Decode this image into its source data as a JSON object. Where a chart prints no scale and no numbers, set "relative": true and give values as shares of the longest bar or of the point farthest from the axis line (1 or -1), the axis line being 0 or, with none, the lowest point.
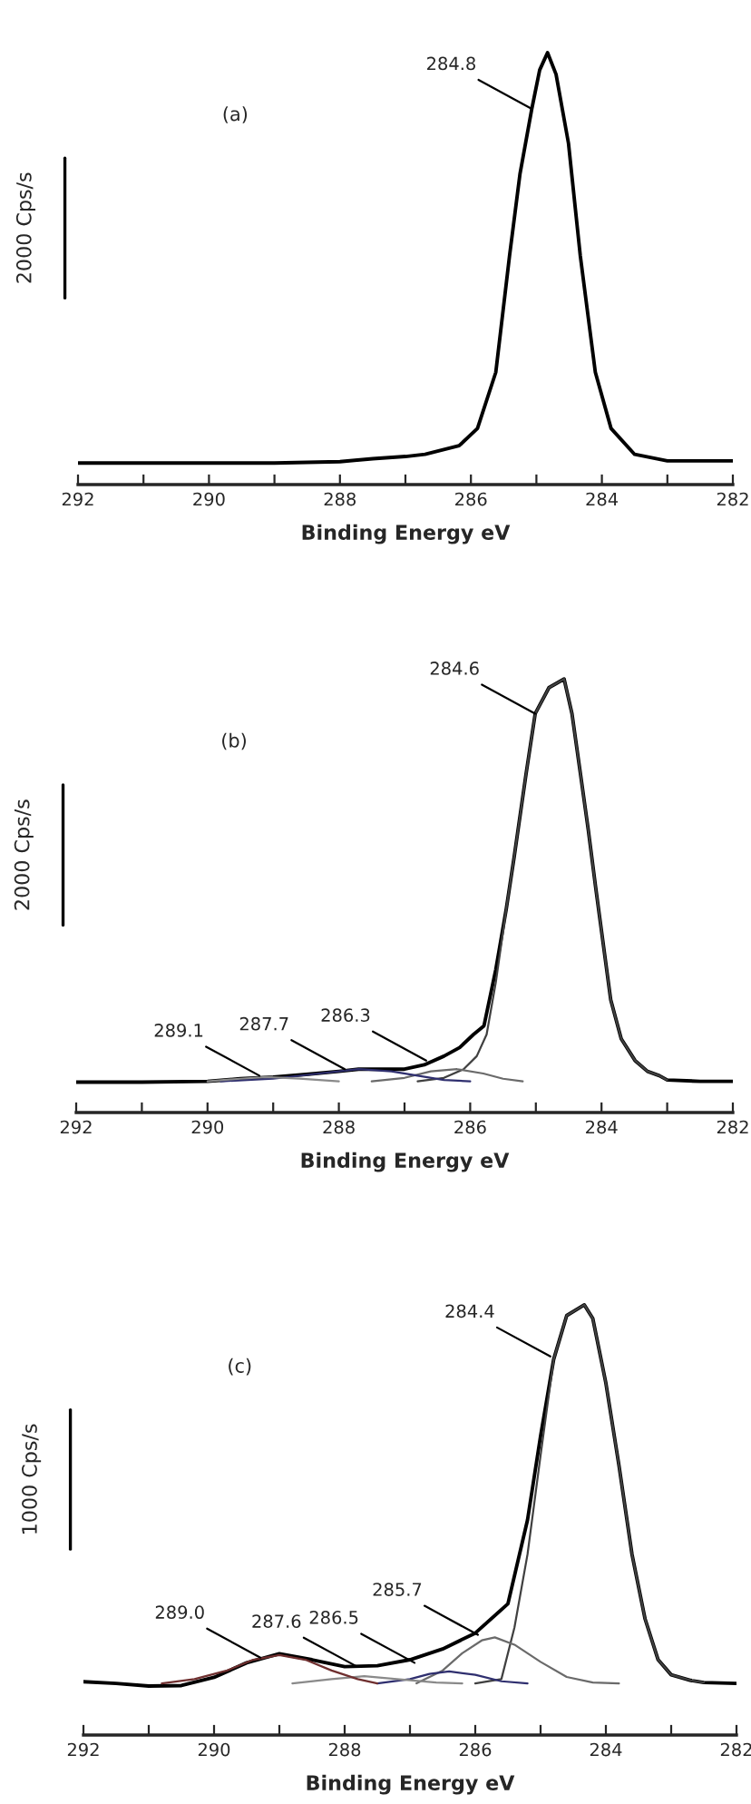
{
  "chart_data": [
    {
      "type": "line",
      "relative": true,
      "xlabel": "Binding Energy eV",
      "ylabel": "2000 Cps/s",
      "xlim": [
        292,
        282
      ],
      "xticks": [
        292,
        {
          "value": 291,
          "label": null
        },
        290,
        {
          "value": 289,
          "label": null
        },
        288,
        {
          "value": 287,
          "label": null
        },
        286,
        {
          "value": 285,
          "label": null
        },
        284,
        {
          "value": 283,
          "label": null
        },
        282
      ],
      "annotations": [
        "(a)",
        {
          "text": "284.8",
          "x": 285.07,
          "y": 0.87
        }
      ],
      "series": [
        {
          "color": "#000000",
          "x": [
            292,
            291,
            290,
            289,
            288,
            287.5,
            287,
            286.7,
            286.18,
            285.9,
            285.62,
            285.41,
            285.25,
            285.07,
            284.95,
            284.83,
            284.7,
            284.51,
            284.33,
            284.1,
            283.86,
            283.5,
            283,
            282
          ],
          "values": [
            0.05,
            0.05,
            0.05,
            0.05,
            0.053,
            0.06,
            0.065,
            0.07,
            0.09,
            0.13,
            0.26,
            0.53,
            0.72,
            0.87,
            0.96,
            1.0,
            0.95,
            0.79,
            0.53,
            0.26,
            0.13,
            0.07,
            0.055,
            0.055
          ]
        }
      ]
    },
    {
      "type": "line",
      "relative": true,
      "xlabel": "Binding Energy eV",
      "ylabel": "2000 Cps/s",
      "xlim": [
        292,
        282
      ],
      "xticks": [
        292,
        {
          "value": 291,
          "label": null
        },
        290,
        {
          "value": 289,
          "label": null
        },
        288,
        {
          "value": 287,
          "label": null
        },
        286,
        {
          "value": 285,
          "label": null
        },
        284,
        {
          "value": 283,
          "label": null
        },
        282
      ],
      "annotations": [
        "(b)",
        {
          "text": "284.6",
          "x": 285.01,
          "y": 0.92
        },
        {
          "text": "286.3",
          "x": 286.67,
          "y": 0.12
        },
        {
          "text": "287.7",
          "x": 287.91,
          "y": 0.1
        },
        {
          "text": "289.1",
          "x": 289.21,
          "y": 0.085
        }
      ],
      "series": [
        {
          "color": "#000000",
          "x": [
            292,
            291,
            290,
            289.5,
            289,
            288.5,
            288,
            287.7,
            287.4,
            287,
            286.7,
            286.4,
            286.16,
            285.95,
            285.79,
            285.61,
            285.45,
            285.33,
            285.15,
            285.01,
            284.8,
            284.57,
            284.45,
            284.32,
            284.2,
            284.09,
            283.86,
            283.7,
            283.49,
            283.3,
            283.12,
            283,
            282.5,
            282
          ],
          "values": [
            0.07,
            0.07,
            0.072,
            0.078,
            0.082,
            0.088,
            0.095,
            0.1,
            0.1,
            0.1,
            0.11,
            0.13,
            0.15,
            0.18,
            0.2,
            0.33,
            0.47,
            0.59,
            0.78,
            0.92,
            0.98,
            1.0,
            0.92,
            0.78,
            0.65,
            0.52,
            0.26,
            0.17,
            0.12,
            0.095,
            0.085,
            0.075,
            0.072,
            0.072
          ]
        },
        {
          "color": "#404040",
          "x": [
            286.8,
            286.4,
            286.1,
            285.9,
            285.75,
            285.61,
            285.45,
            285.33,
            285.15,
            285.01,
            284.8,
            284.57,
            284.45,
            284.32,
            284.2,
            284.09,
            283.86,
            283.7,
            283.49,
            283.3,
            283.12,
            283
          ],
          "values": [
            0.072,
            0.08,
            0.1,
            0.13,
            0.18,
            0.3,
            0.47,
            0.59,
            0.78,
            0.92,
            0.98,
            1.0,
            0.92,
            0.78,
            0.65,
            0.52,
            0.26,
            0.17,
            0.12,
            0.095,
            0.085,
            0.075
          ]
        },
        {
          "color": "#6a6a6a",
          "x": [
            287.5,
            287,
            286.6,
            286.2,
            285.8,
            285.5,
            285.2
          ],
          "values": [
            0.072,
            0.08,
            0.095,
            0.1,
            0.09,
            0.078,
            0.072
          ]
        },
        {
          "color": "#2f2f6f",
          "x": [
            289.8,
            289,
            288.3,
            287.7,
            287.2,
            286.8,
            286.4,
            286
          ],
          "values": [
            0.072,
            0.078,
            0.09,
            0.1,
            0.095,
            0.085,
            0.075,
            0.072
          ]
        },
        {
          "color": "#8a8a8a",
          "x": [
            290,
            289.5,
            289.1,
            288.6,
            288
          ],
          "values": [
            0.072,
            0.078,
            0.082,
            0.078,
            0.072
          ]
        }
      ]
    },
    {
      "type": "line",
      "relative": true,
      "xlabel": "Binding Energy eV",
      "ylabel": "1000 Cps/s",
      "xlim": [
        292,
        282
      ],
      "xticks": [
        292,
        {
          "value": 291,
          "label": null
        },
        290,
        {
          "value": 289,
          "label": null
        },
        288,
        {
          "value": 287,
          "label": null
        },
        286,
        {
          "value": 285,
          "label": null
        },
        284,
        {
          "value": 283,
          "label": null
        },
        282
      ],
      "annotations": [
        "(c)",
        {
          "text": "284.4",
          "x": 284.85,
          "y": 0.88
        },
        {
          "text": "285.7",
          "x": 285.96,
          "y": 0.233
        },
        {
          "text": "286.5",
          "x": 286.93,
          "y": 0.168
        },
        {
          "text": "287.6",
          "x": 287.81,
          "y": 0.159
        },
        {
          "text": "289.0",
          "x": 289.29,
          "y": 0.18
        }
      ],
      "series": [
        {
          "color": "#000000",
          "x": [
            292,
            291.5,
            291,
            290.5,
            290,
            289.5,
            289,
            288.5,
            288,
            287.5,
            287,
            286.5,
            286,
            285.5,
            285.2,
            285,
            284.8,
            284.6,
            284.33,
            284.2,
            284,
            283.8,
            283.6,
            283.4,
            283.2,
            283,
            282.7,
            282.5,
            282
          ],
          "values": [
            0.124,
            0.12,
            0.114,
            0.115,
            0.134,
            0.168,
            0.189,
            0.175,
            0.159,
            0.161,
            0.175,
            0.2,
            0.237,
            0.305,
            0.5,
            0.695,
            0.873,
            0.975,
            1.0,
            0.968,
            0.818,
            0.627,
            0.42,
            0.27,
            0.175,
            0.14,
            0.127,
            0.122,
            0.12
          ]
        },
        {
          "color": "#404040",
          "x": [
            286,
            285.6,
            285.4,
            285.2,
            285,
            284.8,
            284.6,
            284.33,
            284.2,
            284,
            283.8,
            283.6,
            283.4,
            283.2,
            283,
            282.7,
            282.5
          ],
          "values": [
            0.12,
            0.13,
            0.25,
            0.42,
            0.65,
            0.873,
            0.975,
            1.0,
            0.968,
            0.818,
            0.627,
            0.42,
            0.27,
            0.175,
            0.14,
            0.127,
            0.122
          ]
        },
        {
          "color": "#6a6a6a",
          "x": [
            286.9,
            286.5,
            286.2,
            285.9,
            285.7,
            285.4,
            285,
            284.6,
            284.2,
            283.8
          ],
          "values": [
            0.12,
            0.15,
            0.19,
            0.22,
            0.227,
            0.21,
            0.17,
            0.135,
            0.122,
            0.12
          ]
        },
        {
          "color": "#2f2f6f",
          "x": [
            287.5,
            287,
            286.7,
            286.4,
            286,
            285.6,
            285.2
          ],
          "values": [
            0.12,
            0.13,
            0.142,
            0.148,
            0.14,
            0.125,
            0.12
          ]
        },
        {
          "color": "#8a8a8a",
          "x": [
            288.8,
            288.2,
            287.7,
            287.2,
            286.6,
            286.2
          ],
          "values": [
            0.12,
            0.13,
            0.137,
            0.13,
            0.122,
            0.12
          ]
        },
        {
          "color": "#6f2f2f",
          "x": [
            290.8,
            290.3,
            289.8,
            289.4,
            289,
            288.6,
            288.2,
            287.8,
            287.5
          ],
          "values": [
            0.12,
            0.13,
            0.15,
            0.175,
            0.186,
            0.175,
            0.15,
            0.13,
            0.12
          ]
        }
      ]
    }
  ]
}
